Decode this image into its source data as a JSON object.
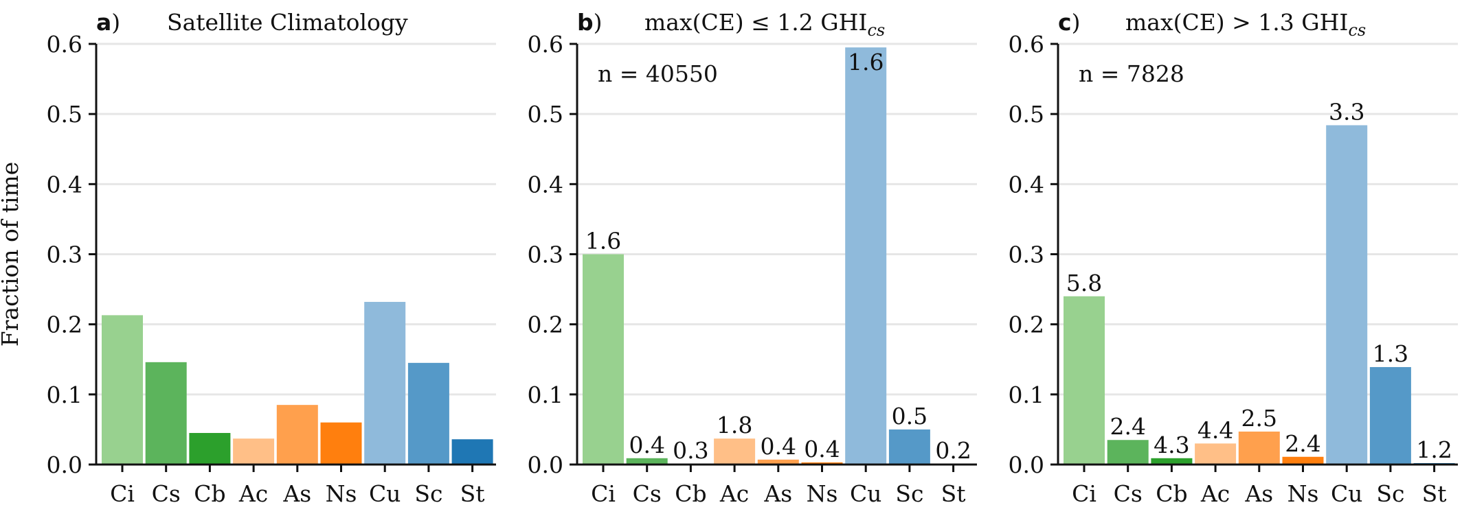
{
  "chart_data": [
    {
      "type": "bar",
      "panel_letter": "a",
      "title": "Satellite Climatology",
      "ylabel": "Fraction of time",
      "ylim": [
        0,
        0.6
      ],
      "yticks": [
        "0.0",
        "0.1",
        "0.2",
        "0.3",
        "0.4",
        "0.5",
        "0.6"
      ],
      "categories": [
        "Ci",
        "Cs",
        "Cb",
        "Ac",
        "As",
        "Ns",
        "Cu",
        "Sc",
        "St"
      ],
      "values": [
        0.213,
        0.146,
        0.045,
        0.037,
        0.085,
        0.06,
        0.232,
        0.145,
        0.036
      ],
      "bar_labels": [
        "",
        "",
        "",
        "",
        "",
        "",
        "",
        "",
        ""
      ],
      "grid": "horizontal",
      "n_label": ""
    },
    {
      "type": "bar",
      "panel_letter": "b",
      "title": "max(CE) ≤ 1.2 GHI",
      "title_sub": "cs",
      "ylim": [
        0,
        0.6
      ],
      "yticks": [
        "0.0",
        "0.1",
        "0.2",
        "0.3",
        "0.4",
        "0.5",
        "0.6"
      ],
      "categories": [
        "Ci",
        "Cs",
        "Cb",
        "Ac",
        "As",
        "Ns",
        "Cu",
        "Sc",
        "St"
      ],
      "values": [
        0.3,
        0.009,
        0.001,
        0.037,
        0.007,
        0.003,
        0.595,
        0.05,
        0.001
      ],
      "bar_labels": [
        "1.6",
        "0.4",
        "0.3",
        "1.8",
        "0.4",
        "0.4",
        "1.6",
        "0.5",
        "0.2"
      ],
      "grid": "horizontal",
      "n_label": "n = 40550"
    },
    {
      "type": "bar",
      "panel_letter": "c",
      "title": "max(CE) > 1.3 GHI",
      "title_sub": "cs",
      "ylim": [
        0,
        0.6
      ],
      "yticks": [
        "0.0",
        "0.1",
        "0.2",
        "0.3",
        "0.4",
        "0.5",
        "0.6"
      ],
      "categories": [
        "Ci",
        "Cs",
        "Cb",
        "Ac",
        "As",
        "Ns",
        "Cu",
        "Sc",
        "St"
      ],
      "values": [
        0.24,
        0.035,
        0.009,
        0.03,
        0.047,
        0.011,
        0.484,
        0.139,
        0.002
      ],
      "bar_labels": [
        "5.8",
        "2.4",
        "4.3",
        "4.4",
        "2.5",
        "2.4",
        "3.3",
        "1.3",
        "1.2"
      ],
      "grid": "horizontal",
      "n_label": "n = 7828"
    }
  ],
  "colors": [
    "#98d18f",
    "#5cb45c",
    "#2ca02c",
    "#ffbf87",
    "#ffa04d",
    "#ff7f0e",
    "#8fbadb",
    "#5599c8",
    "#1f77b4"
  ]
}
